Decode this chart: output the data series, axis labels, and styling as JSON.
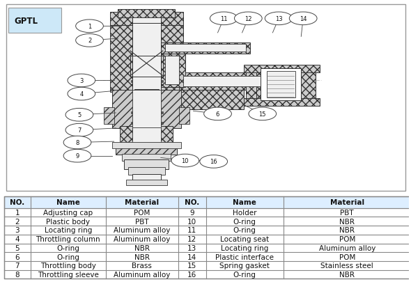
{
  "title": "GPTL",
  "table_headers": [
    "NO.",
    "Name",
    "Material",
    "NO.",
    "Name",
    "Material"
  ],
  "table_data": [
    [
      "1",
      "Adjusting cap",
      "POM",
      "9",
      "Holder",
      "PBT"
    ],
    [
      "2",
      "Plastic body",
      "PBT",
      "10",
      "O-ring",
      "NBR"
    ],
    [
      "3",
      "Locating ring",
      "Aluminum alloy",
      "11",
      "O-ring",
      "NBR"
    ],
    [
      "4",
      "Throttling column",
      "Aluminum alloy",
      "12",
      "Locating seat",
      "POM"
    ],
    [
      "5",
      "O-ring",
      "NBR",
      "13",
      "Locating ring",
      "Aluminum alloy"
    ],
    [
      "6",
      "O-ring",
      "NBR",
      "14",
      "Plastic interface",
      "POM"
    ],
    [
      "7",
      "Throttling body",
      "Brass",
      "15",
      "Spring gasket",
      "Stainless steel"
    ],
    [
      "8",
      "Throttling sleeve",
      "Aluminum alloy",
      "16",
      "O-ring",
      "NBR"
    ]
  ],
  "header_bg": "#ddeeff",
  "grid_color": "#888888",
  "text_color": "#000000",
  "bg_color": "#ffffff",
  "font_size_table": 7.5,
  "font_size_header": 7.5,
  "callouts": [
    [
      1,
      0.215,
      0.875,
      0.285,
      0.875
    ],
    [
      2,
      0.215,
      0.8,
      0.285,
      0.81
    ],
    [
      3,
      0.195,
      0.59,
      0.275,
      0.59
    ],
    [
      4,
      0.195,
      0.52,
      0.275,
      0.535
    ],
    [
      5,
      0.19,
      0.41,
      0.28,
      0.42
    ],
    [
      6,
      0.53,
      0.415,
      0.47,
      0.43
    ],
    [
      7,
      0.19,
      0.33,
      0.28,
      0.34
    ],
    [
      8,
      0.185,
      0.265,
      0.275,
      0.27
    ],
    [
      9,
      0.185,
      0.195,
      0.27,
      0.195
    ],
    [
      10,
      0.45,
      0.17,
      0.39,
      0.185
    ],
    [
      11,
      0.545,
      0.915,
      0.53,
      0.84
    ],
    [
      12,
      0.605,
      0.915,
      0.59,
      0.84
    ],
    [
      13,
      0.68,
      0.915,
      0.665,
      0.84
    ],
    [
      14,
      0.74,
      0.915,
      0.735,
      0.82
    ],
    [
      15,
      0.64,
      0.415,
      0.59,
      0.465
    ],
    [
      16,
      0.52,
      0.165,
      0.45,
      0.175
    ]
  ]
}
